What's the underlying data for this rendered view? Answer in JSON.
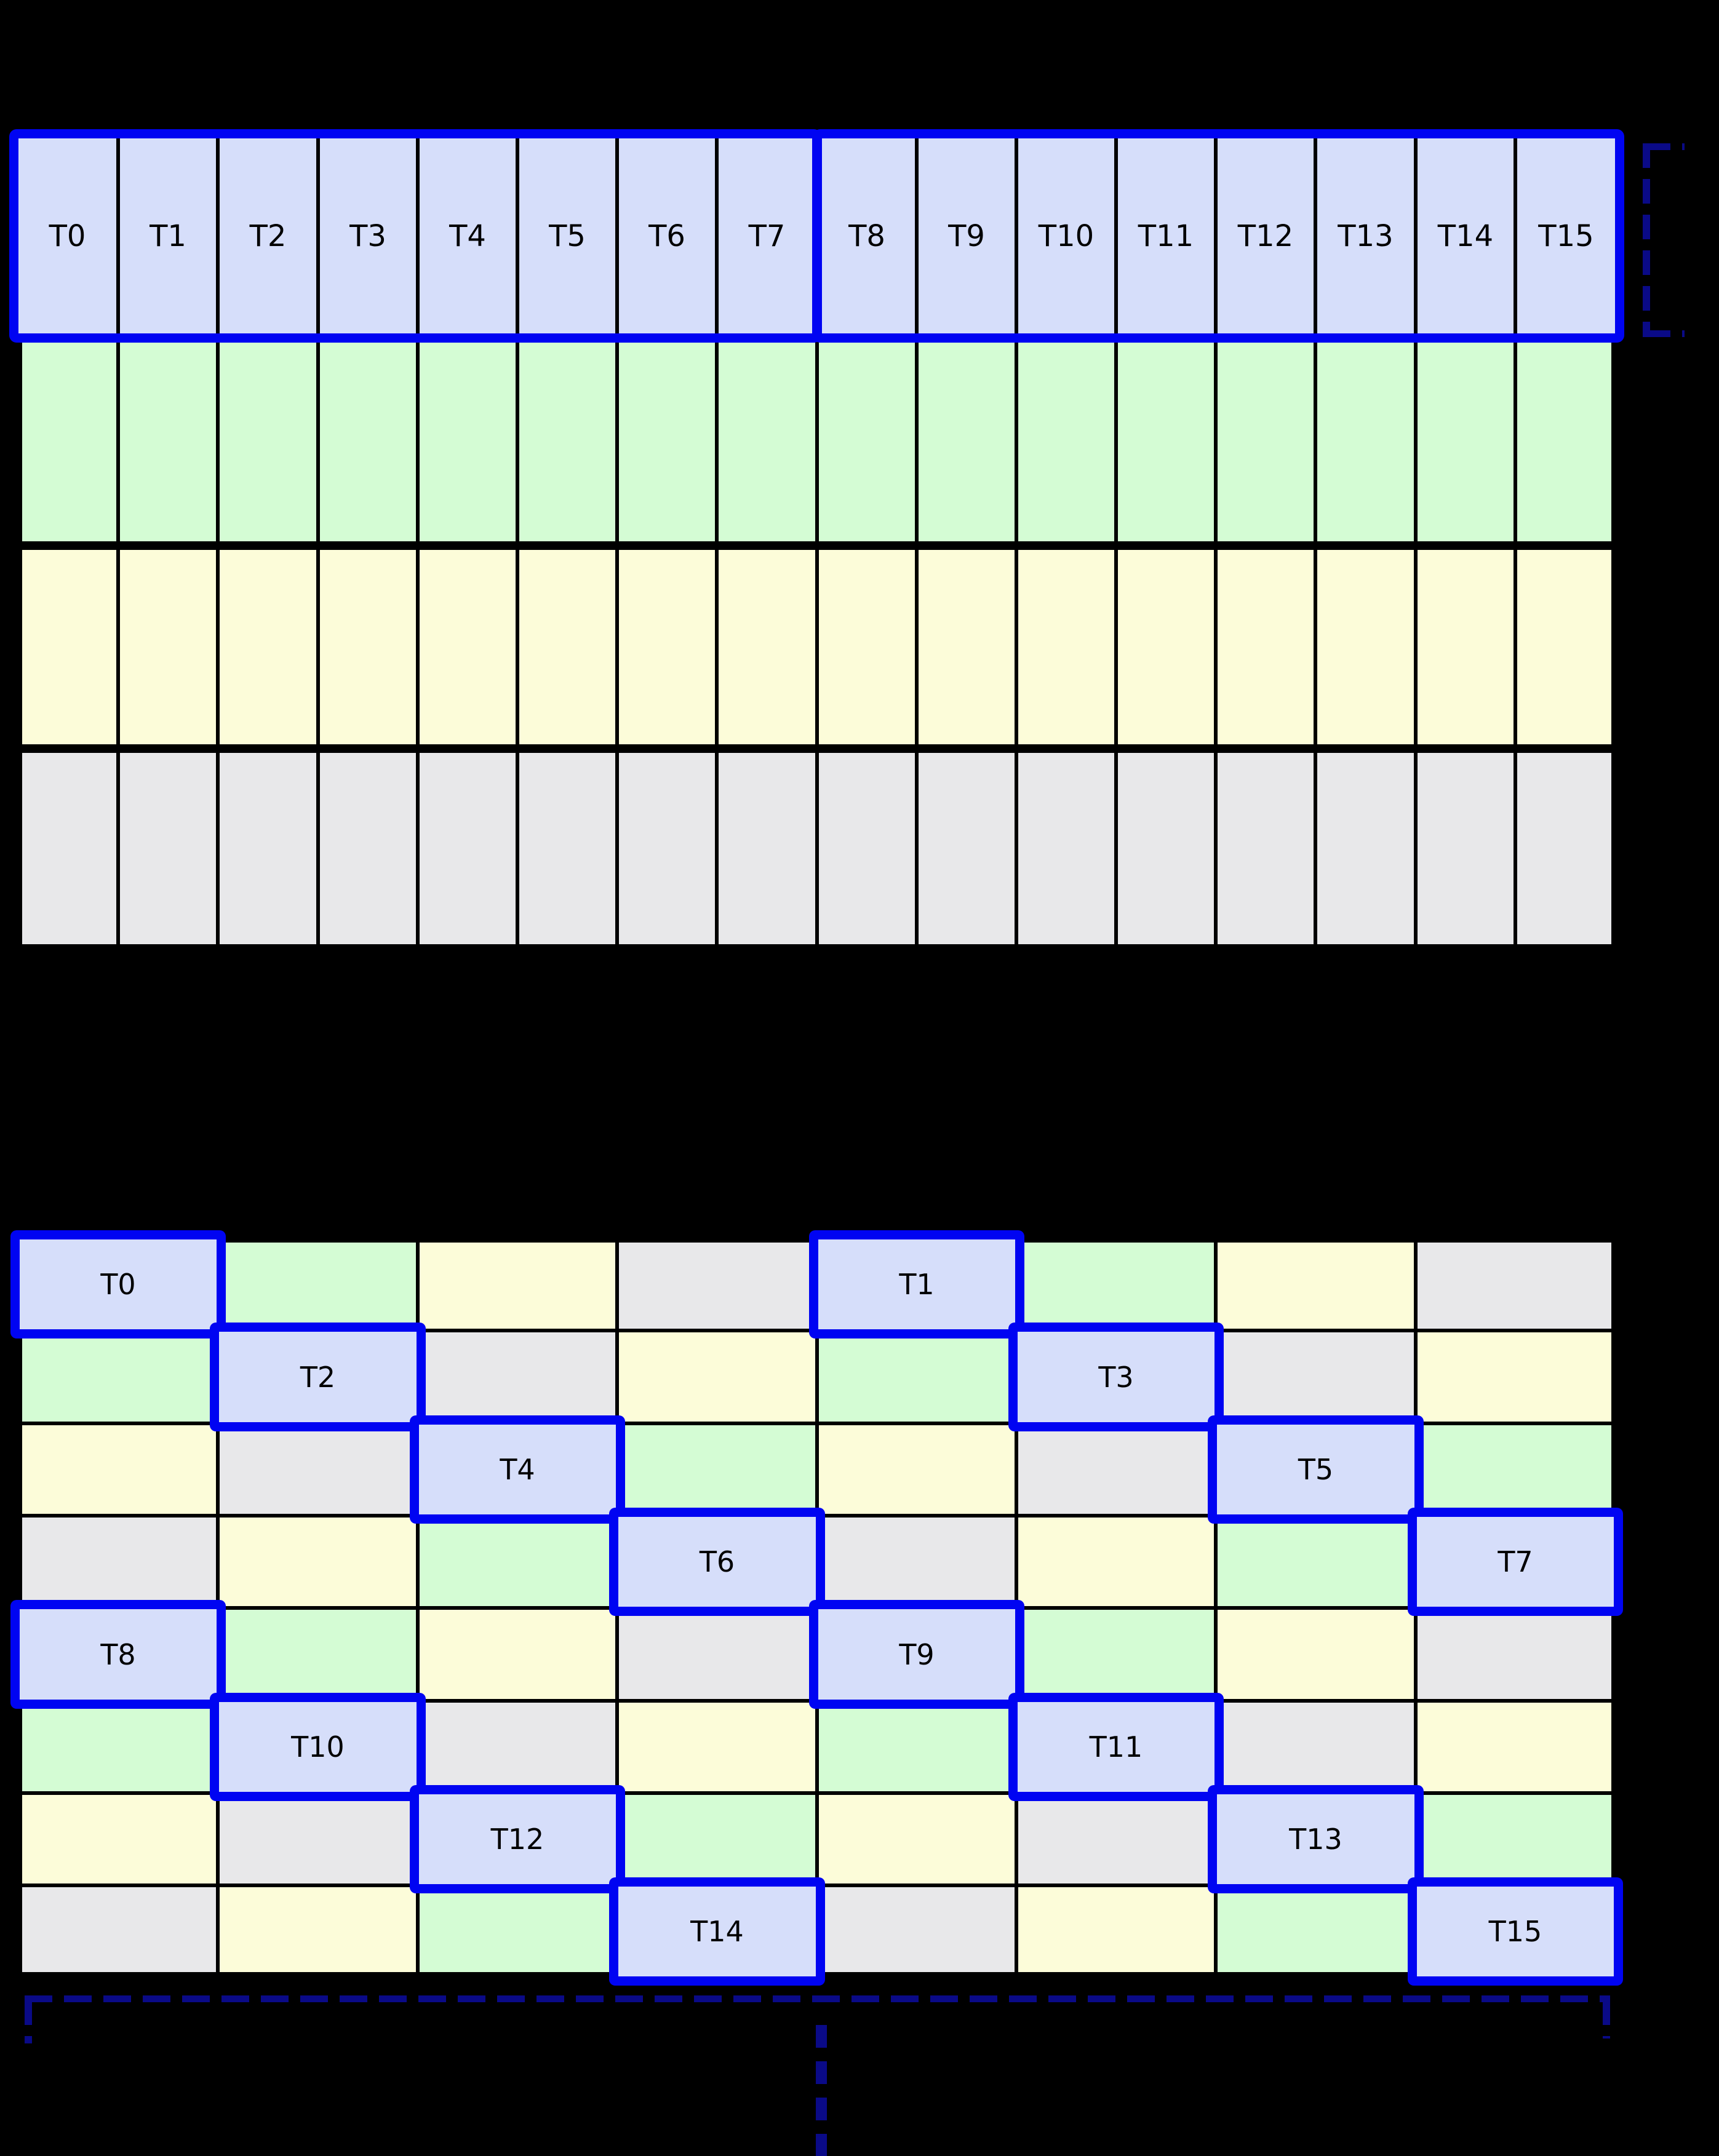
{
  "palette": {
    "lav": "#D6DEFA",
    "grn": "#D4FCD4",
    "yel": "#FCFCD9",
    "gry": "#E8E8EA",
    "highlight_border": "#0004F2",
    "bracket_navy": "#0A0A87",
    "grid_line": "#000000",
    "background": "#000000"
  },
  "top_grid": {
    "thread_labels": [
      "T0",
      "T1",
      "T2",
      "T3",
      "T4",
      "T5",
      "T6",
      "T7",
      "T8",
      "T9",
      "T10",
      "T11",
      "T12",
      "T13",
      "T14",
      "T15"
    ],
    "groups": [
      {
        "start": 0,
        "end": 7
      },
      {
        "start": 8,
        "end": 15
      }
    ],
    "data_rows": [
      "grn",
      "yel",
      "gry"
    ]
  },
  "bottom_grid": {
    "rows": [
      {
        "cells": [
          {
            "color": "lav",
            "label": "T0",
            "highlight": true
          },
          {
            "color": "grn",
            "label": null,
            "highlight": false
          },
          {
            "color": "yel",
            "label": null,
            "highlight": false
          },
          {
            "color": "gry",
            "label": null,
            "highlight": false
          },
          {
            "color": "lav",
            "label": "T1",
            "highlight": true
          },
          {
            "color": "grn",
            "label": null,
            "highlight": false
          },
          {
            "color": "yel",
            "label": null,
            "highlight": false
          },
          {
            "color": "gry",
            "label": null,
            "highlight": false
          }
        ]
      },
      {
        "cells": [
          {
            "color": "grn",
            "label": null,
            "highlight": false
          },
          {
            "color": "lav",
            "label": "T2",
            "highlight": true
          },
          {
            "color": "gry",
            "label": null,
            "highlight": false
          },
          {
            "color": "yel",
            "label": null,
            "highlight": false
          },
          {
            "color": "grn",
            "label": null,
            "highlight": false
          },
          {
            "color": "lav",
            "label": "T3",
            "highlight": true
          },
          {
            "color": "gry",
            "label": null,
            "highlight": false
          },
          {
            "color": "yel",
            "label": null,
            "highlight": false
          }
        ]
      },
      {
        "cells": [
          {
            "color": "yel",
            "label": null,
            "highlight": false
          },
          {
            "color": "gry",
            "label": null,
            "highlight": false
          },
          {
            "color": "lav",
            "label": "T4",
            "highlight": true
          },
          {
            "color": "grn",
            "label": null,
            "highlight": false
          },
          {
            "color": "yel",
            "label": null,
            "highlight": false
          },
          {
            "color": "gry",
            "label": null,
            "highlight": false
          },
          {
            "color": "lav",
            "label": "T5",
            "highlight": true
          },
          {
            "color": "grn",
            "label": null,
            "highlight": false
          }
        ]
      },
      {
        "cells": [
          {
            "color": "gry",
            "label": null,
            "highlight": false
          },
          {
            "color": "yel",
            "label": null,
            "highlight": false
          },
          {
            "color": "grn",
            "label": null,
            "highlight": false
          },
          {
            "color": "lav",
            "label": "T6",
            "highlight": true
          },
          {
            "color": "gry",
            "label": null,
            "highlight": false
          },
          {
            "color": "yel",
            "label": null,
            "highlight": false
          },
          {
            "color": "grn",
            "label": null,
            "highlight": false
          },
          {
            "color": "lav",
            "label": "T7",
            "highlight": true
          }
        ]
      },
      {
        "cells": [
          {
            "color": "lav",
            "label": "T8",
            "highlight": true
          },
          {
            "color": "grn",
            "label": null,
            "highlight": false
          },
          {
            "color": "yel",
            "label": null,
            "highlight": false
          },
          {
            "color": "gry",
            "label": null,
            "highlight": false
          },
          {
            "color": "lav",
            "label": "T9",
            "highlight": true
          },
          {
            "color": "grn",
            "label": null,
            "highlight": false
          },
          {
            "color": "yel",
            "label": null,
            "highlight": false
          },
          {
            "color": "gry",
            "label": null,
            "highlight": false
          }
        ]
      },
      {
        "cells": [
          {
            "color": "grn",
            "label": null,
            "highlight": false
          },
          {
            "color": "lav",
            "label": "T10",
            "highlight": true
          },
          {
            "color": "gry",
            "label": null,
            "highlight": false
          },
          {
            "color": "yel",
            "label": null,
            "highlight": false
          },
          {
            "color": "grn",
            "label": null,
            "highlight": false
          },
          {
            "color": "lav",
            "label": "T11",
            "highlight": true
          },
          {
            "color": "gry",
            "label": null,
            "highlight": false
          },
          {
            "color": "yel",
            "label": null,
            "highlight": false
          }
        ]
      },
      {
        "cells": [
          {
            "color": "yel",
            "label": null,
            "highlight": false
          },
          {
            "color": "gry",
            "label": null,
            "highlight": false
          },
          {
            "color": "lav",
            "label": "T12",
            "highlight": true
          },
          {
            "color": "grn",
            "label": null,
            "highlight": false
          },
          {
            "color": "yel",
            "label": null,
            "highlight": false
          },
          {
            "color": "gry",
            "label": null,
            "highlight": false
          },
          {
            "color": "lav",
            "label": "T13",
            "highlight": true
          },
          {
            "color": "grn",
            "label": null,
            "highlight": false
          }
        ]
      },
      {
        "cells": [
          {
            "color": "gry",
            "label": null,
            "highlight": false
          },
          {
            "color": "yel",
            "label": null,
            "highlight": false
          },
          {
            "color": "grn",
            "label": null,
            "highlight": false
          },
          {
            "color": "lav",
            "label": "T14",
            "highlight": true
          },
          {
            "color": "gry",
            "label": null,
            "highlight": false
          },
          {
            "color": "yel",
            "label": null,
            "highlight": false
          },
          {
            "color": "grn",
            "label": null,
            "highlight": false
          },
          {
            "color": "lav",
            "label": "T15",
            "highlight": true
          }
        ]
      }
    ]
  },
  "annotations": {
    "warp_bracket_right": true,
    "bottom_row_bracket": true,
    "continuation_dots": 4
  }
}
